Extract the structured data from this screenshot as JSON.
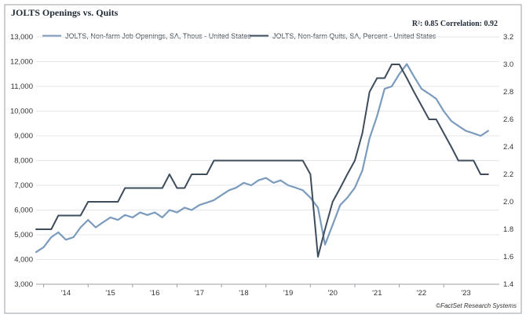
{
  "chart_data": {
    "type": "line",
    "title": "JOLTS Openings vs. Quits",
    "stat_text": "R²: 0.85 Correlation: 0.92",
    "source": "©FactSet Research Systems",
    "x_tick_labels": [
      "'14",
      "'15",
      "'16",
      "'17",
      "'18",
      "'19",
      "'20",
      "'21",
      "'22",
      "'23"
    ],
    "x_tick_years": [
      2014,
      2015,
      2016,
      2017,
      2018,
      2019,
      2020,
      2021,
      2022,
      2023
    ],
    "xlim": [
      2013.83,
      2024.25
    ],
    "left_axis": {
      "ylim": [
        3000,
        13000
      ],
      "ticks": [
        3000,
        4000,
        5000,
        6000,
        7000,
        8000,
        9000,
        10000,
        11000,
        12000,
        13000
      ],
      "tick_labels": [
        "3,000",
        "4,000",
        "5,000",
        "6,000",
        "7,000",
        "8,000",
        "9,000",
        "10,000",
        "11,000",
        "12,000",
        "13,000"
      ]
    },
    "right_axis": {
      "ylim": [
        1.4,
        3.2
      ],
      "ticks": [
        1.4,
        1.6,
        1.8,
        2.0,
        2.2,
        2.4,
        2.6,
        2.8,
        3.0,
        3.2
      ],
      "tick_labels": [
        "1.4",
        "1.6",
        "1.8",
        "2.0",
        "2.2",
        "2.4",
        "2.6",
        "2.8",
        "3.0",
        "3.2"
      ]
    },
    "grid": true,
    "legend_position": "top",
    "series": [
      {
        "name": "JOLTS, Non-farm Job Openings, SA, Thous - United States",
        "axis": "left",
        "color": "#7b9bbd",
        "x": [
          2013.83,
          2014.0,
          2014.17,
          2014.33,
          2014.5,
          2014.67,
          2014.83,
          2015.0,
          2015.17,
          2015.33,
          2015.5,
          2015.67,
          2015.83,
          2016.0,
          2016.17,
          2016.33,
          2016.5,
          2016.67,
          2016.83,
          2017.0,
          2017.17,
          2017.33,
          2017.5,
          2017.67,
          2017.83,
          2018.0,
          2018.17,
          2018.33,
          2018.5,
          2018.67,
          2018.83,
          2019.0,
          2019.17,
          2019.33,
          2019.5,
          2019.67,
          2019.83,
          2020.0,
          2020.17,
          2020.33,
          2020.5,
          2020.67,
          2020.83,
          2021.0,
          2021.17,
          2021.33,
          2021.5,
          2021.67,
          2021.83,
          2022.0,
          2022.17,
          2022.33,
          2022.5,
          2022.67,
          2022.83,
          2023.0,
          2023.17,
          2023.33,
          2023.5,
          2023.67,
          2023.83,
          2024.0
        ],
        "values": [
          4300,
          4500,
          4900,
          5100,
          4800,
          4900,
          5300,
          5600,
          5300,
          5500,
          5700,
          5600,
          5800,
          5700,
          5900,
          5800,
          5900,
          5700,
          6000,
          5900,
          6100,
          6000,
          6200,
          6300,
          6400,
          6600,
          6800,
          6900,
          7100,
          7000,
          7200,
          7300,
          7100,
          7200,
          7000,
          6900,
          6800,
          6500,
          6100,
          4600,
          5400,
          6200,
          6500,
          6900,
          7600,
          8900,
          9800,
          10900,
          11000,
          11500,
          11900,
          11400,
          10900,
          10700,
          10500,
          10000,
          9600,
          9400,
          9200,
          9100,
          9000,
          9200
        ]
      },
      {
        "name": "JOLTS, Non-farm Quits, SA, Percent - United States",
        "axis": "right",
        "color": "#3e4c5c",
        "x": [
          2013.83,
          2014.0,
          2014.17,
          2014.33,
          2014.5,
          2014.67,
          2014.83,
          2015.0,
          2015.17,
          2015.33,
          2015.5,
          2015.67,
          2015.83,
          2016.0,
          2016.17,
          2016.33,
          2016.5,
          2016.67,
          2016.83,
          2017.0,
          2017.17,
          2017.33,
          2017.5,
          2017.67,
          2017.83,
          2018.0,
          2018.17,
          2018.33,
          2018.5,
          2018.67,
          2018.83,
          2019.0,
          2019.17,
          2019.33,
          2019.5,
          2019.67,
          2019.83,
          2020.0,
          2020.17,
          2020.33,
          2020.5,
          2020.67,
          2020.83,
          2021.0,
          2021.17,
          2021.33,
          2021.5,
          2021.67,
          2021.83,
          2022.0,
          2022.17,
          2022.33,
          2022.5,
          2022.67,
          2022.83,
          2023.0,
          2023.17,
          2023.33,
          2023.5,
          2023.67,
          2023.83,
          2024.0
        ],
        "values": [
          1.8,
          1.8,
          1.8,
          1.9,
          1.9,
          1.9,
          1.9,
          2.0,
          2.0,
          2.0,
          2.0,
          2.0,
          2.1,
          2.1,
          2.1,
          2.1,
          2.1,
          2.1,
          2.2,
          2.1,
          2.1,
          2.2,
          2.2,
          2.2,
          2.3,
          2.3,
          2.3,
          2.3,
          2.3,
          2.3,
          2.3,
          2.3,
          2.3,
          2.3,
          2.3,
          2.3,
          2.3,
          2.2,
          1.6,
          1.8,
          2.0,
          2.1,
          2.2,
          2.3,
          2.5,
          2.8,
          2.9,
          2.9,
          3.0,
          3.0,
          2.9,
          2.8,
          2.7,
          2.6,
          2.6,
          2.5,
          2.4,
          2.3,
          2.3,
          2.3,
          2.2,
          2.2
        ]
      }
    ]
  }
}
